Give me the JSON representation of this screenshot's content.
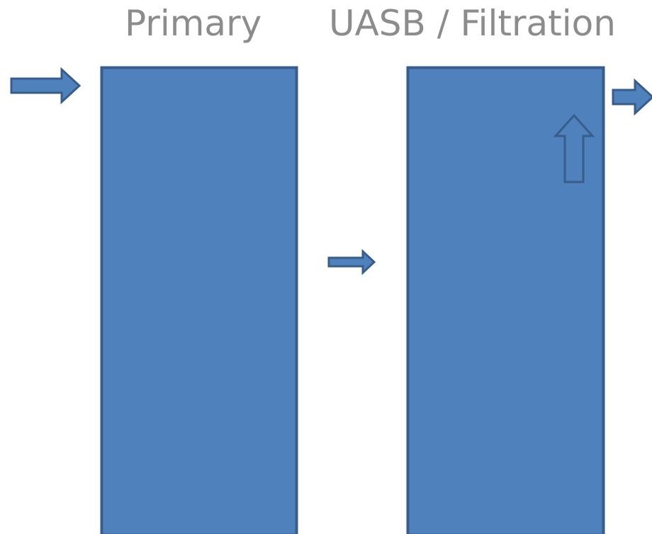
{
  "labels": {
    "primary": "Primary",
    "uasb_filtration": "UASB / Filtration"
  },
  "colors": {
    "tank_fill": "#4f81bd",
    "tank_stroke": "#385d8a",
    "label_text": "#8c8c8c"
  },
  "icons": {
    "inflow": "arrow-right-icon",
    "transfer": "arrow-right-icon",
    "upflow": "arrow-up-icon",
    "outflow": "arrow-right-icon"
  }
}
